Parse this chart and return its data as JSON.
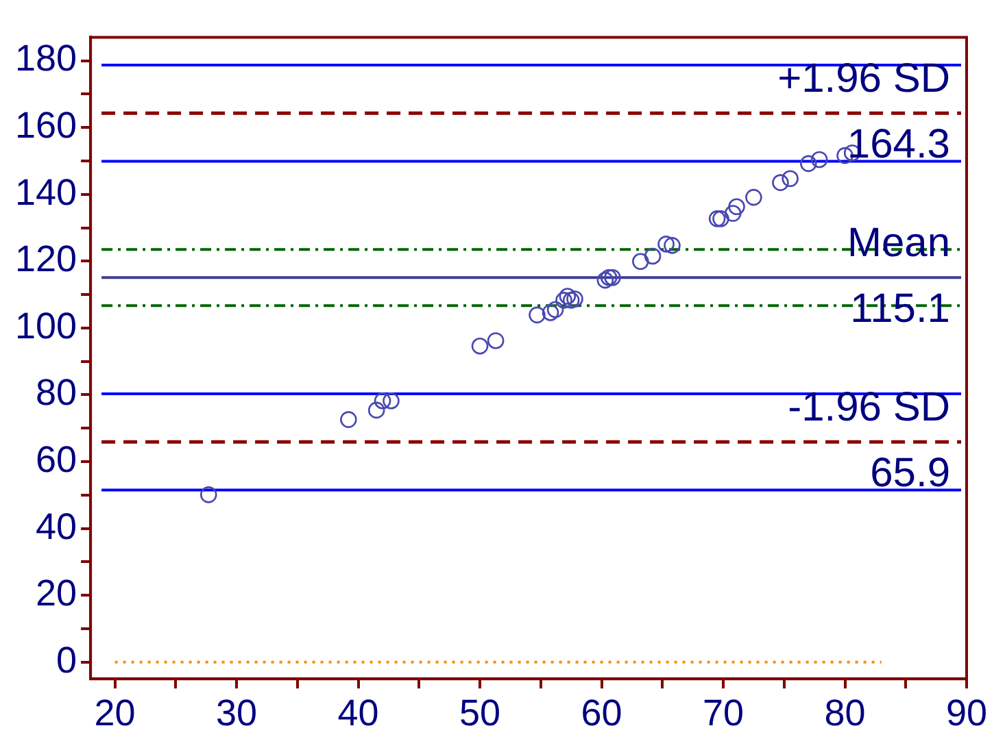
{
  "chart_data": {
    "type": "scatter",
    "marker": "circle",
    "grid": false,
    "legend": false,
    "xlim": [
      18,
      90
    ],
    "ylim": [
      -5,
      187
    ],
    "xticks": [
      20,
      {
        "value": 25,
        "label": null
      },
      30,
      {
        "value": 35,
        "label": null
      },
      40,
      {
        "value": 45,
        "label": null
      },
      50,
      {
        "value": 55,
        "label": null
      },
      60,
      {
        "value": 65,
        "label": null
      },
      70,
      {
        "value": 75,
        "label": null
      },
      80,
      {
        "value": 85,
        "label": null
      },
      90
    ],
    "yticks": [
      0,
      {
        "value": 10,
        "label": null
      },
      20,
      {
        "value": 30,
        "label": null
      },
      40,
      {
        "value": 50,
        "label": null
      },
      60,
      {
        "value": 70,
        "label": null
      },
      80,
      {
        "value": 90,
        "label": null
      },
      100,
      {
        "value": 110,
        "label": null
      },
      120,
      {
        "value": 130,
        "label": null
      },
      140,
      {
        "value": 150,
        "label": null
      },
      160,
      {
        "value": 170,
        "label": null
      },
      180
    ],
    "series": [
      {
        "color": "#4848b0",
        "x": [
          27.7,
          39.2,
          41.5,
          42.0,
          42.7,
          50.0,
          51.3,
          54.7,
          55.8,
          56.2,
          56.9,
          57.2,
          57.5,
          57.8,
          60.3,
          60.6,
          60.9,
          63.2,
          64.2,
          65.3,
          65.8,
          69.5,
          69.8,
          70.8,
          71.1,
          72.5,
          74.7,
          75.5,
          77.0,
          77.9,
          80.0,
          80.6
        ],
        "values": [
          50.1,
          72.6,
          75.4,
          78.2,
          78.2,
          94.6,
          96.2,
          103.9,
          104.6,
          105.5,
          108.3,
          109.5,
          108.3,
          108.7,
          114.3,
          115.1,
          115.1,
          119.9,
          121.5,
          125.1,
          124.7,
          132.7,
          132.7,
          134.3,
          136.3,
          139.1,
          143.5,
          144.7,
          149.2,
          150.4,
          151.6,
          152.4
        ]
      },
      {
        "type": "line",
        "color": "#ff8c00",
        "line_style": "dotted",
        "marker": "none",
        "x": [
          20,
          83
        ],
        "values": [
          0,
          0
        ]
      }
    ],
    "ref_lines": [
      {
        "axis": "y",
        "value": 178.7,
        "color": "#0000ff",
        "line_style": "solid"
      },
      {
        "axis": "y",
        "value": 164.3,
        "color": "#8b0000",
        "line_style": "dashed",
        "label": "+1.96 SD"
      },
      {
        "axis": "y",
        "value": 149.9,
        "color": "#0000ff",
        "line_style": "solid"
      },
      {
        "axis": "y",
        "value": 123.5,
        "color": "#006400",
        "line_style": "dashdot"
      },
      {
        "axis": "y",
        "value": 115.1,
        "color": "#3c3c96",
        "line_style": "solid",
        "label": "Mean"
      },
      {
        "axis": "y",
        "value": 106.7,
        "color": "#006400",
        "line_style": "dashdot"
      },
      {
        "axis": "y",
        "value": 80.3,
        "color": "#0000ff",
        "line_style": "solid"
      },
      {
        "axis": "y",
        "value": 65.9,
        "color": "#8b0000",
        "line_style": "dashed",
        "label": "-1.96 SD"
      },
      {
        "axis": "y",
        "value": 51.5,
        "color": "#0000ff",
        "line_style": "solid"
      }
    ],
    "annotations": [
      {
        "text": "164.3",
        "y": 164.3
      },
      {
        "text": "115.1",
        "y": 115.1
      },
      {
        "text": "65.9",
        "y": 65.9
      }
    ]
  }
}
